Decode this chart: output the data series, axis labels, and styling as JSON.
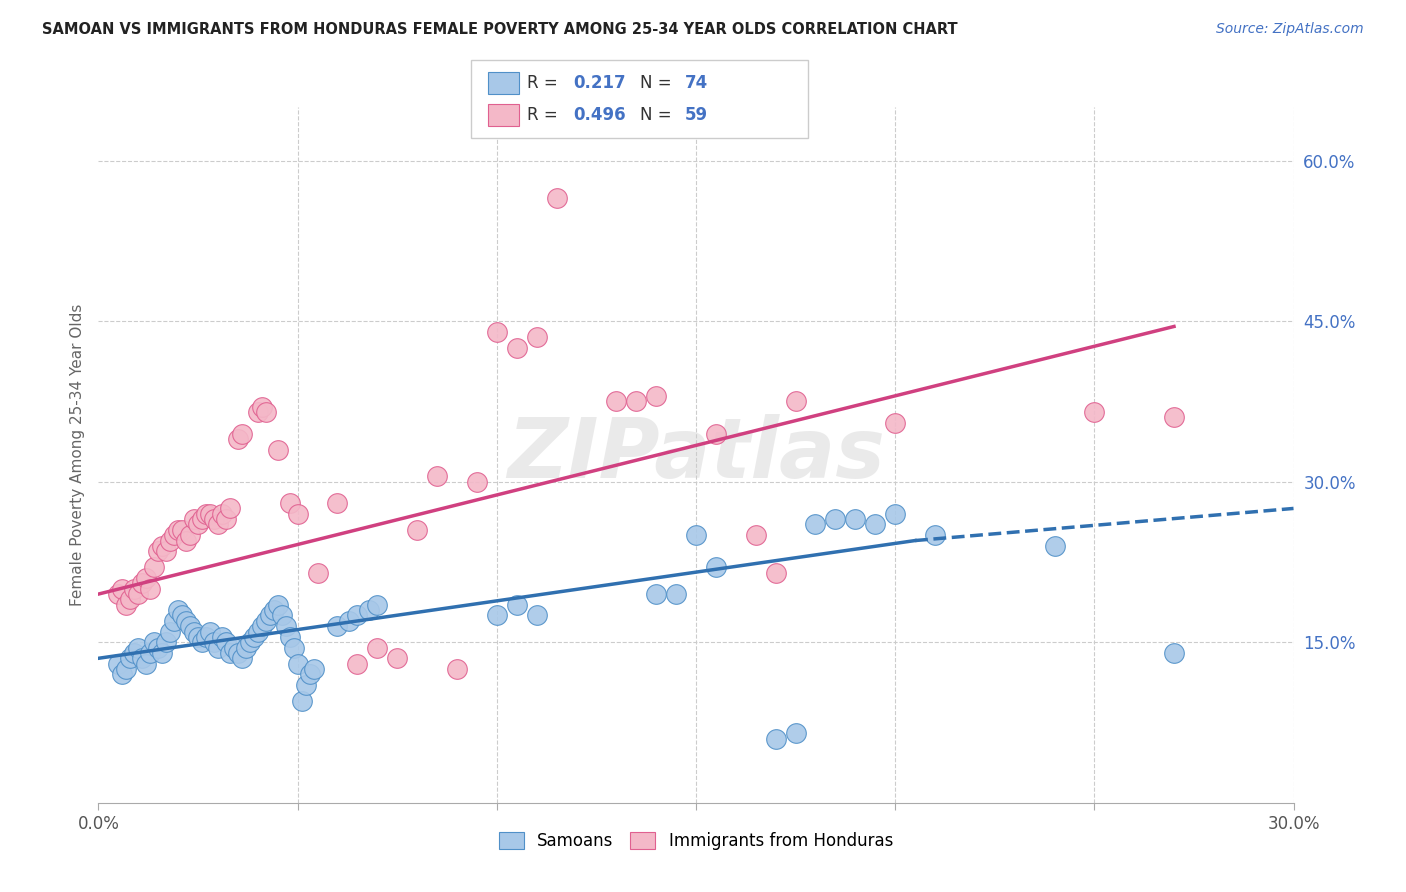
{
  "title": "SAMOAN VS IMMIGRANTS FROM HONDURAS FEMALE POVERTY AMONG 25-34 YEAR OLDS CORRELATION CHART",
  "source": "Source: ZipAtlas.com",
  "ylabel": "Female Poverty Among 25-34 Year Olds",
  "xlim": [
    0.0,
    0.3
  ],
  "ylim": [
    0.0,
    0.65
  ],
  "xticks": [
    0.0,
    0.05,
    0.1,
    0.15,
    0.2,
    0.25,
    0.3
  ],
  "xticklabels": [
    "0.0%",
    "",
    "",
    "",
    "",
    "",
    "30.0%"
  ],
  "yticks_right": [
    0.15,
    0.3,
    0.45,
    0.6
  ],
  "ytick_labels_right": [
    "15.0%",
    "30.0%",
    "45.0%",
    "60.0%"
  ],
  "watermark": "ZIPatlas",
  "blue_color": "#a8c8e8",
  "pink_color": "#f4b8c8",
  "blue_edge_color": "#5090c8",
  "pink_edge_color": "#e06090",
  "blue_line_color": "#3070b0",
  "pink_line_color": "#d04080",
  "blue_scatter": [
    [
      0.005,
      0.13
    ],
    [
      0.006,
      0.12
    ],
    [
      0.007,
      0.125
    ],
    [
      0.008,
      0.135
    ],
    [
      0.009,
      0.14
    ],
    [
      0.01,
      0.145
    ],
    [
      0.011,
      0.135
    ],
    [
      0.012,
      0.13
    ],
    [
      0.013,
      0.14
    ],
    [
      0.014,
      0.15
    ],
    [
      0.015,
      0.145
    ],
    [
      0.016,
      0.14
    ],
    [
      0.017,
      0.15
    ],
    [
      0.018,
      0.16
    ],
    [
      0.019,
      0.17
    ],
    [
      0.02,
      0.18
    ],
    [
      0.021,
      0.175
    ],
    [
      0.022,
      0.17
    ],
    [
      0.023,
      0.165
    ],
    [
      0.024,
      0.16
    ],
    [
      0.025,
      0.155
    ],
    [
      0.026,
      0.15
    ],
    [
      0.027,
      0.155
    ],
    [
      0.028,
      0.16
    ],
    [
      0.029,
      0.15
    ],
    [
      0.03,
      0.145
    ],
    [
      0.031,
      0.155
    ],
    [
      0.032,
      0.15
    ],
    [
      0.033,
      0.14
    ],
    [
      0.034,
      0.145
    ],
    [
      0.035,
      0.14
    ],
    [
      0.036,
      0.135
    ],
    [
      0.037,
      0.145
    ],
    [
      0.038,
      0.15
    ],
    [
      0.039,
      0.155
    ],
    [
      0.04,
      0.16
    ],
    [
      0.041,
      0.165
    ],
    [
      0.042,
      0.17
    ],
    [
      0.043,
      0.175
    ],
    [
      0.044,
      0.18
    ],
    [
      0.045,
      0.185
    ],
    [
      0.046,
      0.175
    ],
    [
      0.047,
      0.165
    ],
    [
      0.048,
      0.155
    ],
    [
      0.049,
      0.145
    ],
    [
      0.05,
      0.13
    ],
    [
      0.051,
      0.095
    ],
    [
      0.052,
      0.11
    ],
    [
      0.053,
      0.12
    ],
    [
      0.054,
      0.125
    ],
    [
      0.06,
      0.165
    ],
    [
      0.063,
      0.17
    ],
    [
      0.065,
      0.175
    ],
    [
      0.068,
      0.18
    ],
    [
      0.07,
      0.185
    ],
    [
      0.1,
      0.175
    ],
    [
      0.105,
      0.185
    ],
    [
      0.11,
      0.175
    ],
    [
      0.14,
      0.195
    ],
    [
      0.145,
      0.195
    ],
    [
      0.15,
      0.25
    ],
    [
      0.155,
      0.22
    ],
    [
      0.18,
      0.26
    ],
    [
      0.185,
      0.265
    ],
    [
      0.19,
      0.265
    ],
    [
      0.195,
      0.26
    ],
    [
      0.2,
      0.27
    ],
    [
      0.21,
      0.25
    ],
    [
      0.24,
      0.24
    ],
    [
      0.17,
      0.06
    ],
    [
      0.175,
      0.065
    ],
    [
      0.27,
      0.14
    ]
  ],
  "pink_scatter": [
    [
      0.005,
      0.195
    ],
    [
      0.006,
      0.2
    ],
    [
      0.007,
      0.185
    ],
    [
      0.008,
      0.19
    ],
    [
      0.009,
      0.2
    ],
    [
      0.01,
      0.195
    ],
    [
      0.011,
      0.205
    ],
    [
      0.012,
      0.21
    ],
    [
      0.013,
      0.2
    ],
    [
      0.014,
      0.22
    ],
    [
      0.015,
      0.235
    ],
    [
      0.016,
      0.24
    ],
    [
      0.017,
      0.235
    ],
    [
      0.018,
      0.245
    ],
    [
      0.019,
      0.25
    ],
    [
      0.02,
      0.255
    ],
    [
      0.021,
      0.255
    ],
    [
      0.022,
      0.245
    ],
    [
      0.023,
      0.25
    ],
    [
      0.024,
      0.265
    ],
    [
      0.025,
      0.26
    ],
    [
      0.026,
      0.265
    ],
    [
      0.027,
      0.27
    ],
    [
      0.028,
      0.27
    ],
    [
      0.029,
      0.265
    ],
    [
      0.03,
      0.26
    ],
    [
      0.031,
      0.27
    ],
    [
      0.032,
      0.265
    ],
    [
      0.033,
      0.275
    ],
    [
      0.035,
      0.34
    ],
    [
      0.036,
      0.345
    ],
    [
      0.04,
      0.365
    ],
    [
      0.041,
      0.37
    ],
    [
      0.042,
      0.365
    ],
    [
      0.045,
      0.33
    ],
    [
      0.048,
      0.28
    ],
    [
      0.05,
      0.27
    ],
    [
      0.055,
      0.215
    ],
    [
      0.06,
      0.28
    ],
    [
      0.065,
      0.13
    ],
    [
      0.07,
      0.145
    ],
    [
      0.075,
      0.135
    ],
    [
      0.08,
      0.255
    ],
    [
      0.085,
      0.305
    ],
    [
      0.09,
      0.125
    ],
    [
      0.095,
      0.3
    ],
    [
      0.1,
      0.44
    ],
    [
      0.105,
      0.425
    ],
    [
      0.11,
      0.435
    ],
    [
      0.115,
      0.565
    ],
    [
      0.13,
      0.375
    ],
    [
      0.135,
      0.375
    ],
    [
      0.14,
      0.38
    ],
    [
      0.155,
      0.345
    ],
    [
      0.165,
      0.25
    ],
    [
      0.17,
      0.215
    ],
    [
      0.175,
      0.375
    ],
    [
      0.2,
      0.355
    ],
    [
      0.25,
      0.365
    ],
    [
      0.27,
      0.36
    ]
  ],
  "blue_regression_solid": [
    0.0,
    0.205,
    0.135,
    0.245
  ],
  "blue_regression_dashed": [
    0.205,
    0.3,
    0.245,
    0.275
  ],
  "pink_regression": [
    0.0,
    0.27,
    0.195,
    0.445
  ],
  "background_color": "#ffffff",
  "grid_color": "#cccccc"
}
